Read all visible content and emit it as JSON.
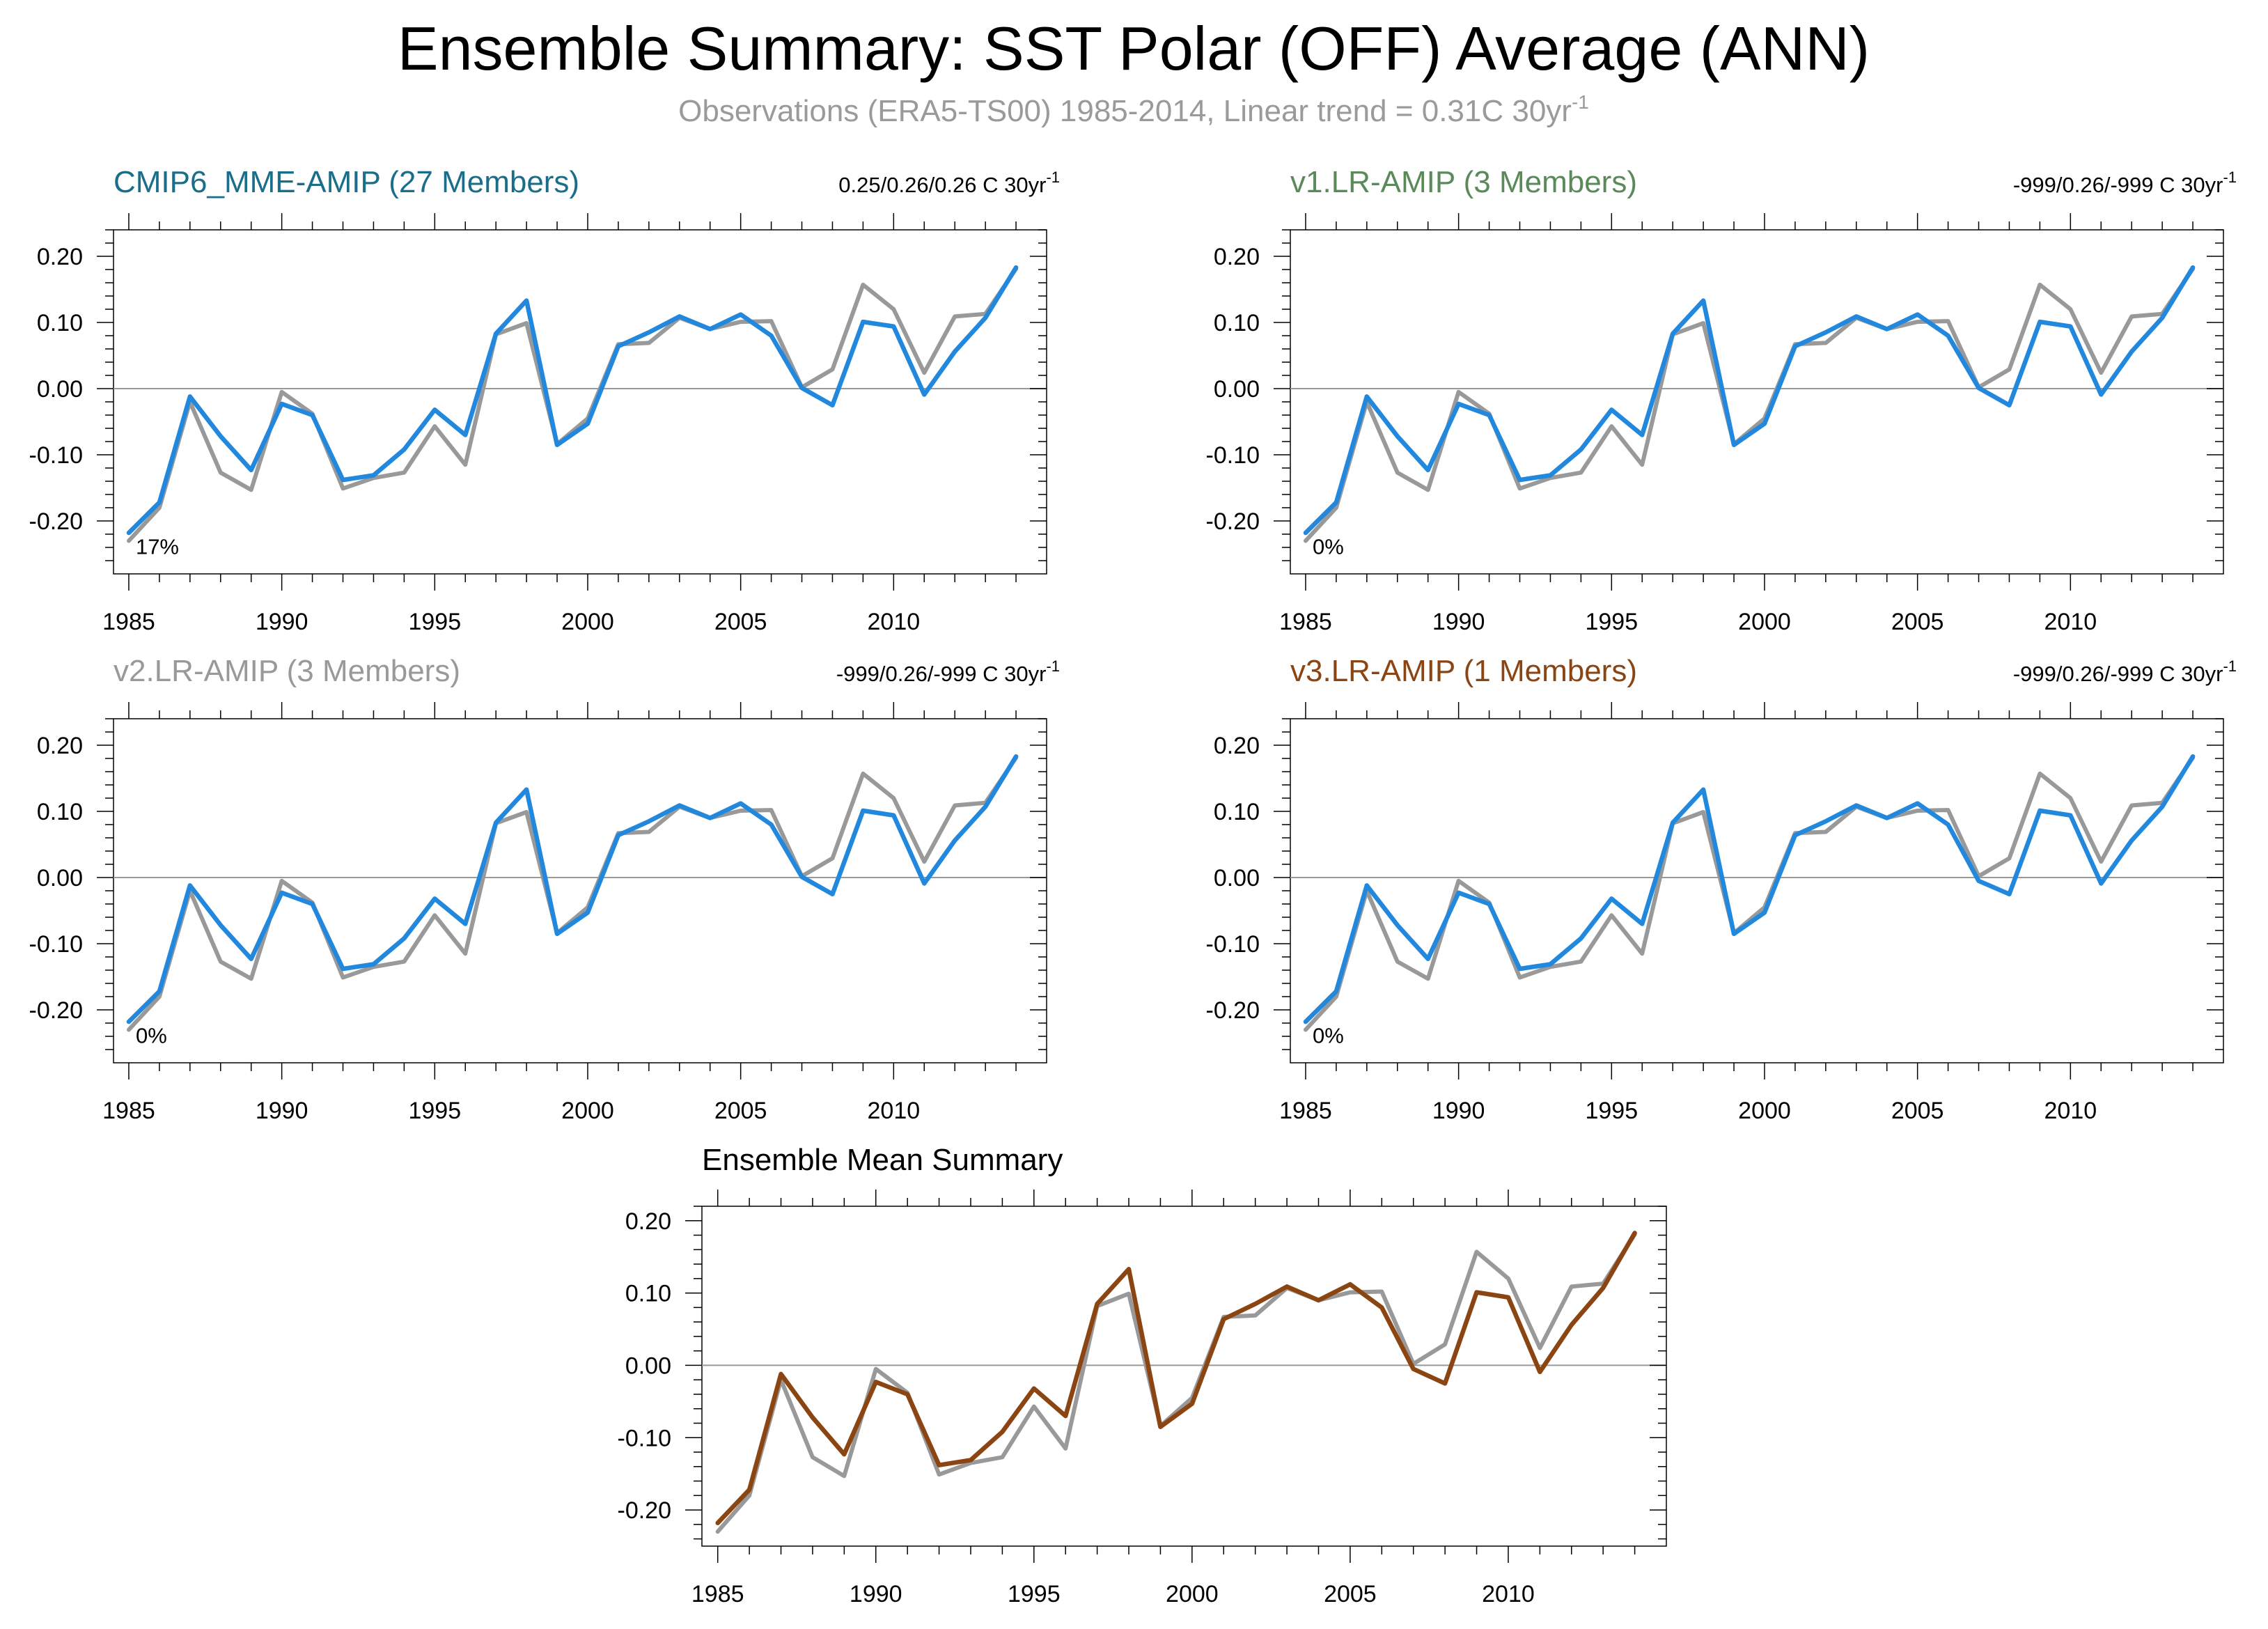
{
  "figure": {
    "title": "Ensemble Summary: SST Polar (OFF) Average (ANN)",
    "subtitle": "Observations (ERA5-TS00) 1985-2014, Linear trend = 0.31C 30yr",
    "subtitle_sup": "-1"
  },
  "colors": {
    "obs": "#999999",
    "model_blue": "#2288dd",
    "mean_brown": "#8b4513",
    "title_cmip6": "#1a6e8a",
    "title_v1": "#5a8a5a",
    "title_v2": "#999999",
    "title_v3": "#8b4513"
  },
  "chart_data": [
    {
      "type": "line",
      "title": "CMIP6_MME-AMIP (27 Members)",
      "title_color": "#1a6e8a",
      "trend_label": "0.25/0.26/0.26 C 30yr",
      "trend_sup": "-1",
      "percent_label": "17%",
      "xticks": [
        1985,
        1990,
        1995,
        2000,
        2005,
        2010
      ],
      "yticks": [
        "0.20",
        "0.10",
        "0.00",
        "-0.10",
        "-0.20"
      ],
      "xlim": [
        1984.5,
        2015
      ],
      "ylim": [
        -0.28,
        0.24
      ],
      "x": [
        1985,
        1986,
        1987,
        1988,
        1989,
        1990,
        1991,
        1992,
        1993,
        1994,
        1995,
        1996,
        1997,
        1998,
        1999,
        2000,
        2001,
        2002,
        2003,
        2004,
        2005,
        2006,
        2007,
        2008,
        2009,
        2010,
        2011,
        2012,
        2013,
        2014
      ],
      "series": [
        {
          "role": "observations",
          "color": "#999999",
          "values": [
            -0.23,
            -0.18,
            -0.02,
            -0.127,
            -0.153,
            -0.005,
            -0.038,
            -0.151,
            -0.135,
            -0.127,
            -0.057,
            -0.115,
            0.082,
            0.099,
            -0.084,
            -0.045,
            0.067,
            0.069,
            0.107,
            0.09,
            0.101,
            0.102,
            0.002,
            0.029,
            0.157,
            0.12,
            0.024,
            0.109,
            0.113,
            0.181
          ]
        },
        {
          "role": "ensemble",
          "color": "#2288dd",
          "values": [
            -0.218,
            -0.172,
            -0.012,
            -0.072,
            -0.123,
            -0.023,
            -0.04,
            -0.138,
            -0.131,
            -0.092,
            -0.032,
            -0.07,
            0.083,
            0.133,
            -0.085,
            -0.053,
            0.064,
            0.085,
            0.109,
            0.09,
            0.112,
            0.08,
            0.001,
            -0.025,
            0.101,
            0.094,
            -0.009,
            0.056,
            0.107,
            0.183
          ]
        }
      ]
    },
    {
      "type": "line",
      "title": "v1.LR-AMIP (3 Members)",
      "title_color": "#5a8a5a",
      "trend_label": "-999/0.26/-999 C 30yr",
      "trend_sup": "-1",
      "percent_label": "0%",
      "xticks": [
        1985,
        1990,
        1995,
        2000,
        2005,
        2010
      ],
      "yticks": [
        "0.20",
        "0.10",
        "0.00",
        "-0.10",
        "-0.20"
      ],
      "xlim": [
        1984.5,
        2015
      ],
      "ylim": [
        -0.28,
        0.24
      ],
      "x": [
        1985,
        1986,
        1987,
        1988,
        1989,
        1990,
        1991,
        1992,
        1993,
        1994,
        1995,
        1996,
        1997,
        1998,
        1999,
        2000,
        2001,
        2002,
        2003,
        2004,
        2005,
        2006,
        2007,
        2008,
        2009,
        2010,
        2011,
        2012,
        2013,
        2014
      ],
      "series": [
        {
          "role": "observations",
          "color": "#999999",
          "values": [
            -0.23,
            -0.18,
            -0.02,
            -0.127,
            -0.153,
            -0.005,
            -0.038,
            -0.151,
            -0.135,
            -0.127,
            -0.057,
            -0.115,
            0.082,
            0.099,
            -0.084,
            -0.045,
            0.067,
            0.069,
            0.107,
            0.09,
            0.101,
            0.102,
            0.002,
            0.029,
            0.157,
            0.12,
            0.024,
            0.109,
            0.113,
            0.181
          ]
        },
        {
          "role": "ensemble",
          "color": "#2288dd",
          "values": [
            -0.218,
            -0.172,
            -0.012,
            -0.072,
            -0.123,
            -0.023,
            -0.04,
            -0.138,
            -0.131,
            -0.092,
            -0.032,
            -0.07,
            0.083,
            0.133,
            -0.085,
            -0.053,
            0.064,
            0.085,
            0.109,
            0.09,
            0.112,
            0.08,
            0.001,
            -0.025,
            0.101,
            0.094,
            -0.009,
            0.056,
            0.107,
            0.183
          ]
        }
      ]
    },
    {
      "type": "line",
      "title": "v2.LR-AMIP (3 Members)",
      "title_color": "#999999",
      "trend_label": "-999/0.26/-999 C 30yr",
      "trend_sup": "-1",
      "percent_label": "0%",
      "xticks": [
        1985,
        1990,
        1995,
        2000,
        2005,
        2010
      ],
      "yticks": [
        "0.20",
        "0.10",
        "0.00",
        "-0.10",
        "-0.20"
      ],
      "xlim": [
        1984.5,
        2015
      ],
      "ylim": [
        -0.28,
        0.24
      ],
      "x": [
        1985,
        1986,
        1987,
        1988,
        1989,
        1990,
        1991,
        1992,
        1993,
        1994,
        1995,
        1996,
        1997,
        1998,
        1999,
        2000,
        2001,
        2002,
        2003,
        2004,
        2005,
        2006,
        2007,
        2008,
        2009,
        2010,
        2011,
        2012,
        2013,
        2014
      ],
      "series": [
        {
          "role": "observations",
          "color": "#999999",
          "values": [
            -0.23,
            -0.18,
            -0.02,
            -0.127,
            -0.153,
            -0.005,
            -0.038,
            -0.151,
            -0.135,
            -0.127,
            -0.057,
            -0.115,
            0.082,
            0.099,
            -0.084,
            -0.045,
            0.067,
            0.069,
            0.107,
            0.09,
            0.101,
            0.102,
            0.002,
            0.029,
            0.157,
            0.12,
            0.024,
            0.109,
            0.113,
            0.181
          ]
        },
        {
          "role": "ensemble",
          "color": "#2288dd",
          "values": [
            -0.218,
            -0.172,
            -0.012,
            -0.072,
            -0.123,
            -0.023,
            -0.04,
            -0.138,
            -0.131,
            -0.092,
            -0.032,
            -0.07,
            0.083,
            0.133,
            -0.085,
            -0.053,
            0.064,
            0.085,
            0.109,
            0.09,
            0.112,
            0.08,
            0.001,
            -0.025,
            0.101,
            0.094,
            -0.009,
            0.056,
            0.107,
            0.183
          ]
        }
      ]
    },
    {
      "type": "line",
      "title": "v3.LR-AMIP (1 Members)",
      "title_color": "#8b4513",
      "trend_label": "-999/0.26/-999 C 30yr",
      "trend_sup": "-1",
      "percent_label": "0%",
      "xticks": [
        1985,
        1990,
        1995,
        2000,
        2005,
        2010
      ],
      "yticks": [
        "0.20",
        "0.10",
        "0.00",
        "-0.10",
        "-0.20"
      ],
      "xlim": [
        1984.5,
        2015
      ],
      "ylim": [
        -0.28,
        0.24
      ],
      "x": [
        1985,
        1986,
        1987,
        1988,
        1989,
        1990,
        1991,
        1992,
        1993,
        1994,
        1995,
        1996,
        1997,
        1998,
        1999,
        2000,
        2001,
        2002,
        2003,
        2004,
        2005,
        2006,
        2007,
        2008,
        2009,
        2010,
        2011,
        2012,
        2013,
        2014
      ],
      "series": [
        {
          "role": "observations",
          "color": "#999999",
          "values": [
            -0.23,
            -0.18,
            -0.02,
            -0.127,
            -0.153,
            -0.005,
            -0.038,
            -0.151,
            -0.135,
            -0.127,
            -0.057,
            -0.115,
            0.082,
            0.099,
            -0.084,
            -0.045,
            0.067,
            0.069,
            0.107,
            0.09,
            0.101,
            0.102,
            0.002,
            0.029,
            0.157,
            0.12,
            0.024,
            0.109,
            0.113,
            0.181
          ]
        },
        {
          "role": "ensemble",
          "color": "#2288dd",
          "values": [
            -0.218,
            -0.172,
            -0.012,
            -0.072,
            -0.123,
            -0.023,
            -0.04,
            -0.138,
            -0.131,
            -0.092,
            -0.032,
            -0.07,
            0.083,
            0.133,
            -0.085,
            -0.053,
            0.064,
            0.085,
            0.109,
            0.09,
            0.112,
            0.08,
            -0.005,
            -0.025,
            0.101,
            0.094,
            -0.009,
            0.056,
            0.107,
            0.183
          ]
        }
      ]
    },
    {
      "type": "line",
      "title": "Ensemble Mean Summary",
      "title_color": "#000000",
      "trend_label": "",
      "trend_sup": "",
      "percent_label": "",
      "xticks": [
        1985,
        1990,
        1995,
        2000,
        2005,
        2010
      ],
      "yticks": [
        "0.20",
        "0.10",
        "0.00",
        "-0.10",
        "-0.20"
      ],
      "xlim": [
        1984.5,
        2015
      ],
      "ylim": [
        -0.25,
        0.22
      ],
      "x": [
        1985,
        1986,
        1987,
        1988,
        1989,
        1990,
        1991,
        1992,
        1993,
        1994,
        1995,
        1996,
        1997,
        1998,
        1999,
        2000,
        2001,
        2002,
        2003,
        2004,
        2005,
        2006,
        2007,
        2008,
        2009,
        2010,
        2011,
        2012,
        2013,
        2014
      ],
      "series": [
        {
          "role": "observations",
          "color": "#999999",
          "values": [
            -0.23,
            -0.18,
            -0.02,
            -0.127,
            -0.153,
            -0.005,
            -0.038,
            -0.151,
            -0.135,
            -0.127,
            -0.057,
            -0.115,
            0.082,
            0.099,
            -0.084,
            -0.045,
            0.067,
            0.069,
            0.107,
            0.09,
            0.101,
            0.102,
            0.002,
            0.029,
            0.157,
            0.12,
            0.024,
            0.109,
            0.113,
            0.181
          ]
        },
        {
          "role": "v3.LR-AMIP mean",
          "color": "#8b4513",
          "values": [
            -0.218,
            -0.172,
            -0.012,
            -0.072,
            -0.123,
            -0.023,
            -0.04,
            -0.138,
            -0.131,
            -0.092,
            -0.032,
            -0.07,
            0.085,
            0.133,
            -0.085,
            -0.053,
            0.064,
            0.085,
            0.109,
            0.09,
            0.112,
            0.08,
            -0.005,
            -0.025,
            0.101,
            0.094,
            -0.009,
            0.056,
            0.107,
            0.183
          ]
        }
      ]
    }
  ]
}
